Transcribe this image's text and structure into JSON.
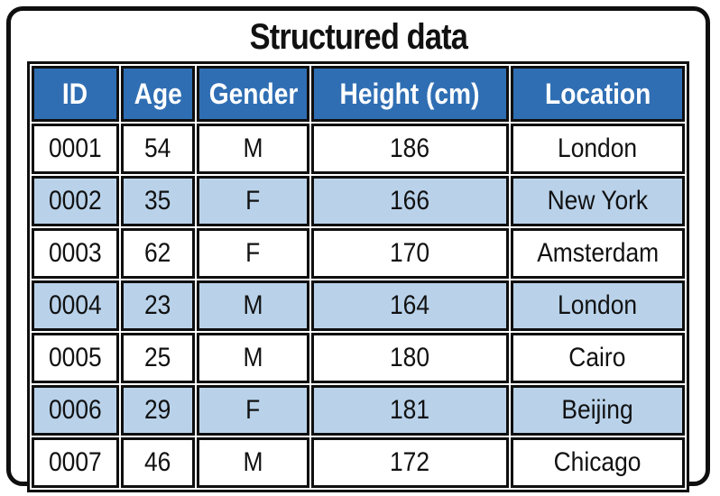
{
  "title": "Structured data",
  "colors": {
    "header_bg": "#2f6eb3",
    "alt_row_bg": "#b9d2ea",
    "border": "#0f0f0f",
    "header_text": "#ffffff",
    "text": "#111111"
  },
  "table": {
    "columns": [
      "ID",
      "Age",
      "Gender",
      "Height (cm)",
      "Location"
    ],
    "rows": [
      [
        "0001",
        "54",
        "M",
        "186",
        "London"
      ],
      [
        "0002",
        "35",
        "F",
        "166",
        "New York"
      ],
      [
        "0003",
        "62",
        "F",
        "170",
        "Amsterdam"
      ],
      [
        "0004",
        "23",
        "M",
        "164",
        "London"
      ],
      [
        "0005",
        "25",
        "M",
        "180",
        "Cairo"
      ],
      [
        "0006",
        "29",
        "F",
        "181",
        "Beijing"
      ],
      [
        "0007",
        "46",
        "M",
        "172",
        "Chicago"
      ]
    ]
  },
  "chart_data": {
    "type": "table",
    "title": "Structured data",
    "columns": [
      "ID",
      "Age",
      "Gender",
      "Height (cm)",
      "Location"
    ],
    "rows": [
      [
        "0001",
        54,
        "M",
        186,
        "London"
      ],
      [
        "0002",
        35,
        "F",
        166,
        "New York"
      ],
      [
        "0003",
        62,
        "F",
        170,
        "Amsterdam"
      ],
      [
        "0004",
        23,
        "M",
        164,
        "London"
      ],
      [
        "0005",
        25,
        "M",
        180,
        "Cairo"
      ],
      [
        "0006",
        29,
        "F",
        181,
        "Beijing"
      ],
      [
        "0007",
        46,
        "M",
        172,
        "Chicago"
      ]
    ],
    "layout_hints": {
      "header_style": "blue background, white bold text",
      "row_striping": "even data rows light blue, odd white",
      "grid": "thick black borders on all cells, rounded outer frame"
    }
  }
}
